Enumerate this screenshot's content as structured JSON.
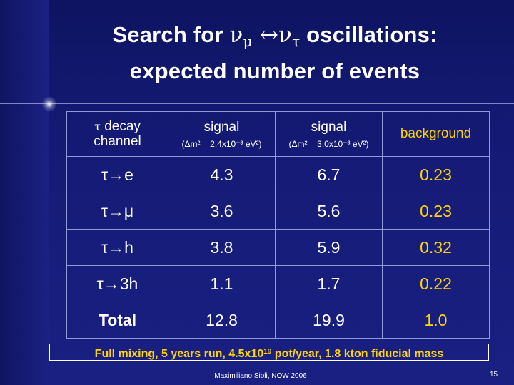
{
  "title": {
    "prefix": "Search for ",
    "nu": "ν",
    "mu": "μ",
    "arrow": " ↔",
    "tau": "τ",
    "suffix": " oscillations:",
    "line2": "expected number of events"
  },
  "table": {
    "header": {
      "channel_tau": "τ",
      "channel_line1": " decay",
      "channel_line2": "channel",
      "signal1_label": "signal",
      "signal1_note": "(Δm² = 2.4x10⁻³ eV²)",
      "signal2_label": "signal",
      "signal2_note": "(Δm² = 3.0x10⁻³ eV²)",
      "background_label": "background"
    },
    "rows": [
      {
        "channel": "τ→e",
        "signal1": "4.3",
        "signal2": "6.7",
        "background": "0.23"
      },
      {
        "channel": "τ→μ",
        "signal1": "3.6",
        "signal2": "5.6",
        "background": "0.23"
      },
      {
        "channel": "τ→h",
        "signal1": "3.8",
        "signal2": "5.9",
        "background": "0.32"
      },
      {
        "channel": "τ→3h",
        "signal1": "1.1",
        "signal2": "1.7",
        "background": "0.22"
      },
      {
        "channel": "Total",
        "signal1": "12.8",
        "signal2": "19.9",
        "background": "1.0"
      }
    ]
  },
  "footnote": {
    "before": "Full mixing, 5 years run, 4.5x10",
    "exponent": "19",
    "after": " pot/year, 1.8 kton fiducial mass"
  },
  "footer": {
    "author": "Maximiliano Sioli, NOW 2006",
    "page": "15"
  },
  "colors": {
    "background": "#141a72",
    "text": "#ffffff",
    "highlight": "#ffd400"
  }
}
